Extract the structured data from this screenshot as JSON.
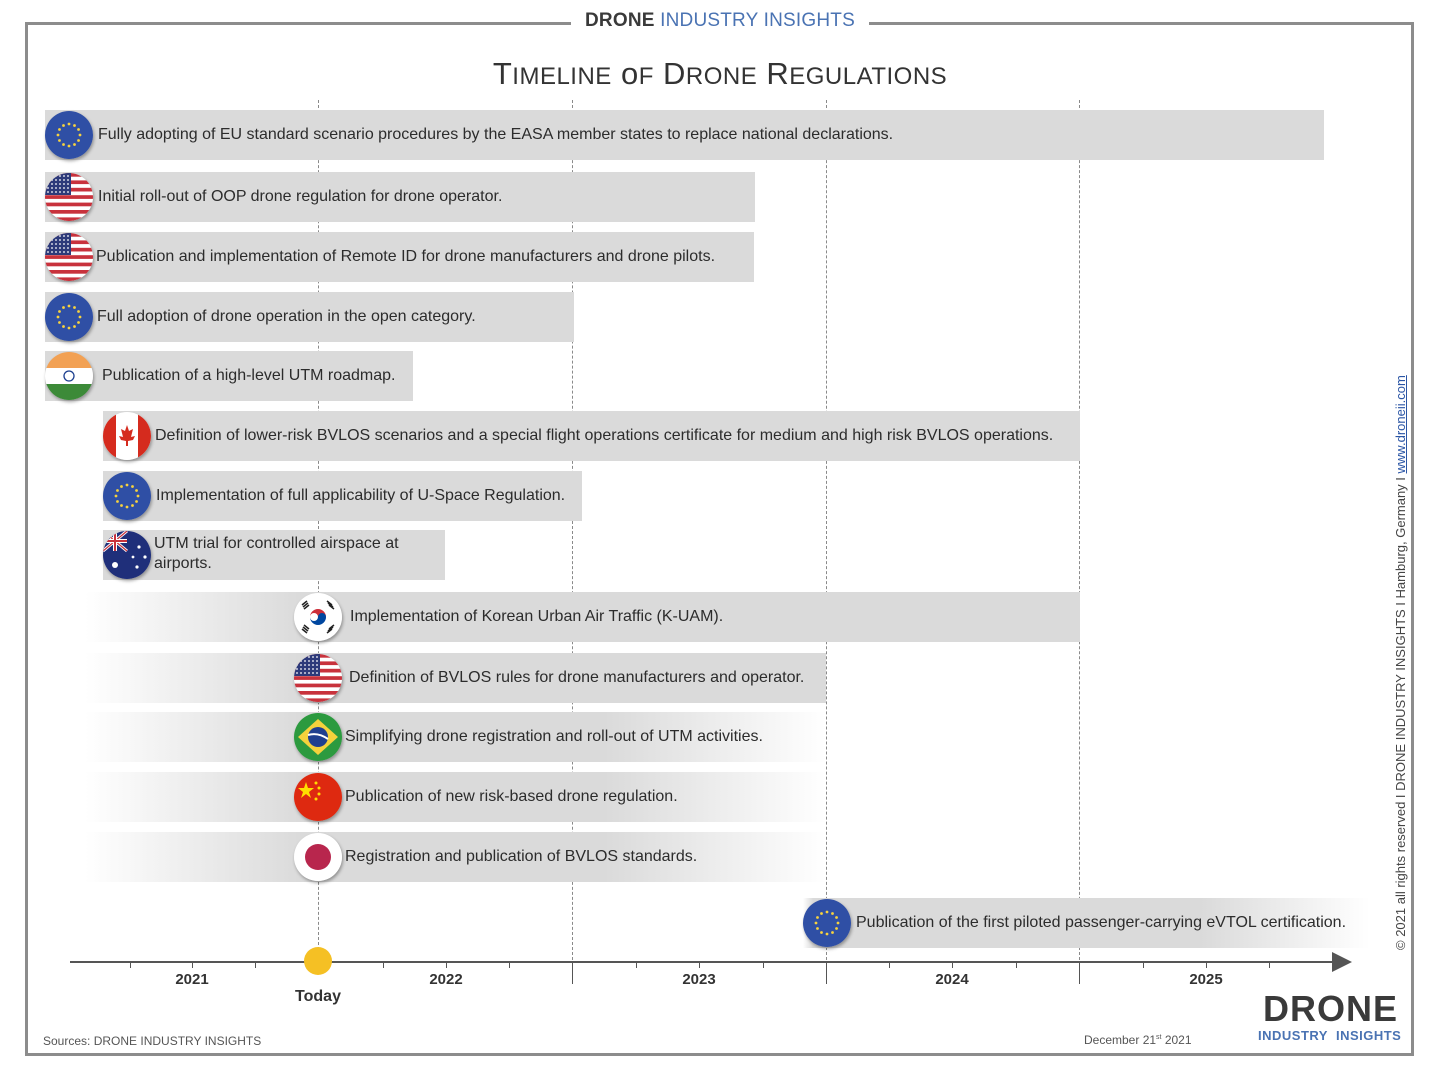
{
  "header": {
    "brand_dark": "DRONE",
    "brand_blue": "INDUSTRY INSIGHTS"
  },
  "title": "Timeline of Drone Regulations",
  "today_label": "Today",
  "sources": "Sources: DRONE INDUSTRY INSIGHTS",
  "date": {
    "main": "December 21",
    "sup": "st",
    "year": " 2021"
  },
  "logo": {
    "big": "DRONE",
    "small": "INDUSTRY  INSIGHTS"
  },
  "side_text": {
    "copyright": "© 2021 all rights reserved I DRONE INDUSTRY INSIGHTS I Hamburg, Germany I ",
    "url": "www.droneii.com"
  },
  "colors": {
    "bar": "#dadada",
    "today": "#f5c024",
    "accent_blue": "#4a73b3"
  },
  "chart_data": {
    "type": "timeline",
    "x_axis": {
      "ticks": [
        "2021",
        "2022",
        "2023",
        "2024",
        "2025"
      ]
    },
    "today": "2021-12-21",
    "events": [
      {
        "flag": "eu-flag",
        "text": "Fully adopting of EU standard scenario procedures by the EASA member states to replace national declarations.",
        "start": "2021-01",
        "end": "2025-06"
      },
      {
        "flag": "us-flag",
        "text": "Initial roll-out of OOP drone regulation for drone operator.",
        "start": "2021-01",
        "end": "2023-07"
      },
      {
        "flag": "us-flag",
        "text": "Publication and implementation of Remote ID for drone manufacturers and drone pilots.",
        "start": "2021-01",
        "end": "2023-07"
      },
      {
        "flag": "eu-flag",
        "text": "Full adoption of drone operation in the open category.",
        "start": "2021-01",
        "end": "2023-01"
      },
      {
        "flag": "india-flag",
        "text": "Publication of a high-level UTM roadmap.",
        "start": "2021-01",
        "end": "2022-06"
      },
      {
        "flag": "canada-flag",
        "text": "Definition of lower-risk BVLOS scenarios and a special flight operations certificate for medium and high risk BVLOS operations.",
        "start": "2021-03",
        "end": "2025-01"
      },
      {
        "flag": "eu-flag",
        "text": "Implementation of full applicability of U-Space Regulation.",
        "start": "2021-03",
        "end": "2023-01"
      },
      {
        "flag": "australia-flag",
        "text": "UTM trial for controlled airspace at airports.",
        "start": "2021-03",
        "end": "2022-06"
      },
      {
        "flag": "korea-flag",
        "text": "Implementation of Korean Urban Air Traffic (K-UAM).",
        "start": "2021-12",
        "end": "2025-01"
      },
      {
        "flag": "us-flag",
        "text": "Definition of BVLOS rules for drone manufacturers and operator.",
        "start": "2021-12",
        "end": "2024-01"
      },
      {
        "flag": "brazil-flag",
        "text": "Simplifying drone registration and roll-out of UTM activities.",
        "start": "2021-12",
        "end": "2024-01"
      },
      {
        "flag": "china-flag",
        "text": "Publication of new risk-based drone regulation.",
        "start": "2021-12",
        "end": "2024-01"
      },
      {
        "flag": "japan-flag",
        "text": "Registration and publication of BVLOS standards.",
        "start": "2021-12",
        "end": "2024-01"
      },
      {
        "flag": "eu-flag",
        "text": "Publication of the first piloted passenger-carrying eVTOL certification.",
        "start": "2024-01",
        "end": "2026-01"
      }
    ]
  }
}
